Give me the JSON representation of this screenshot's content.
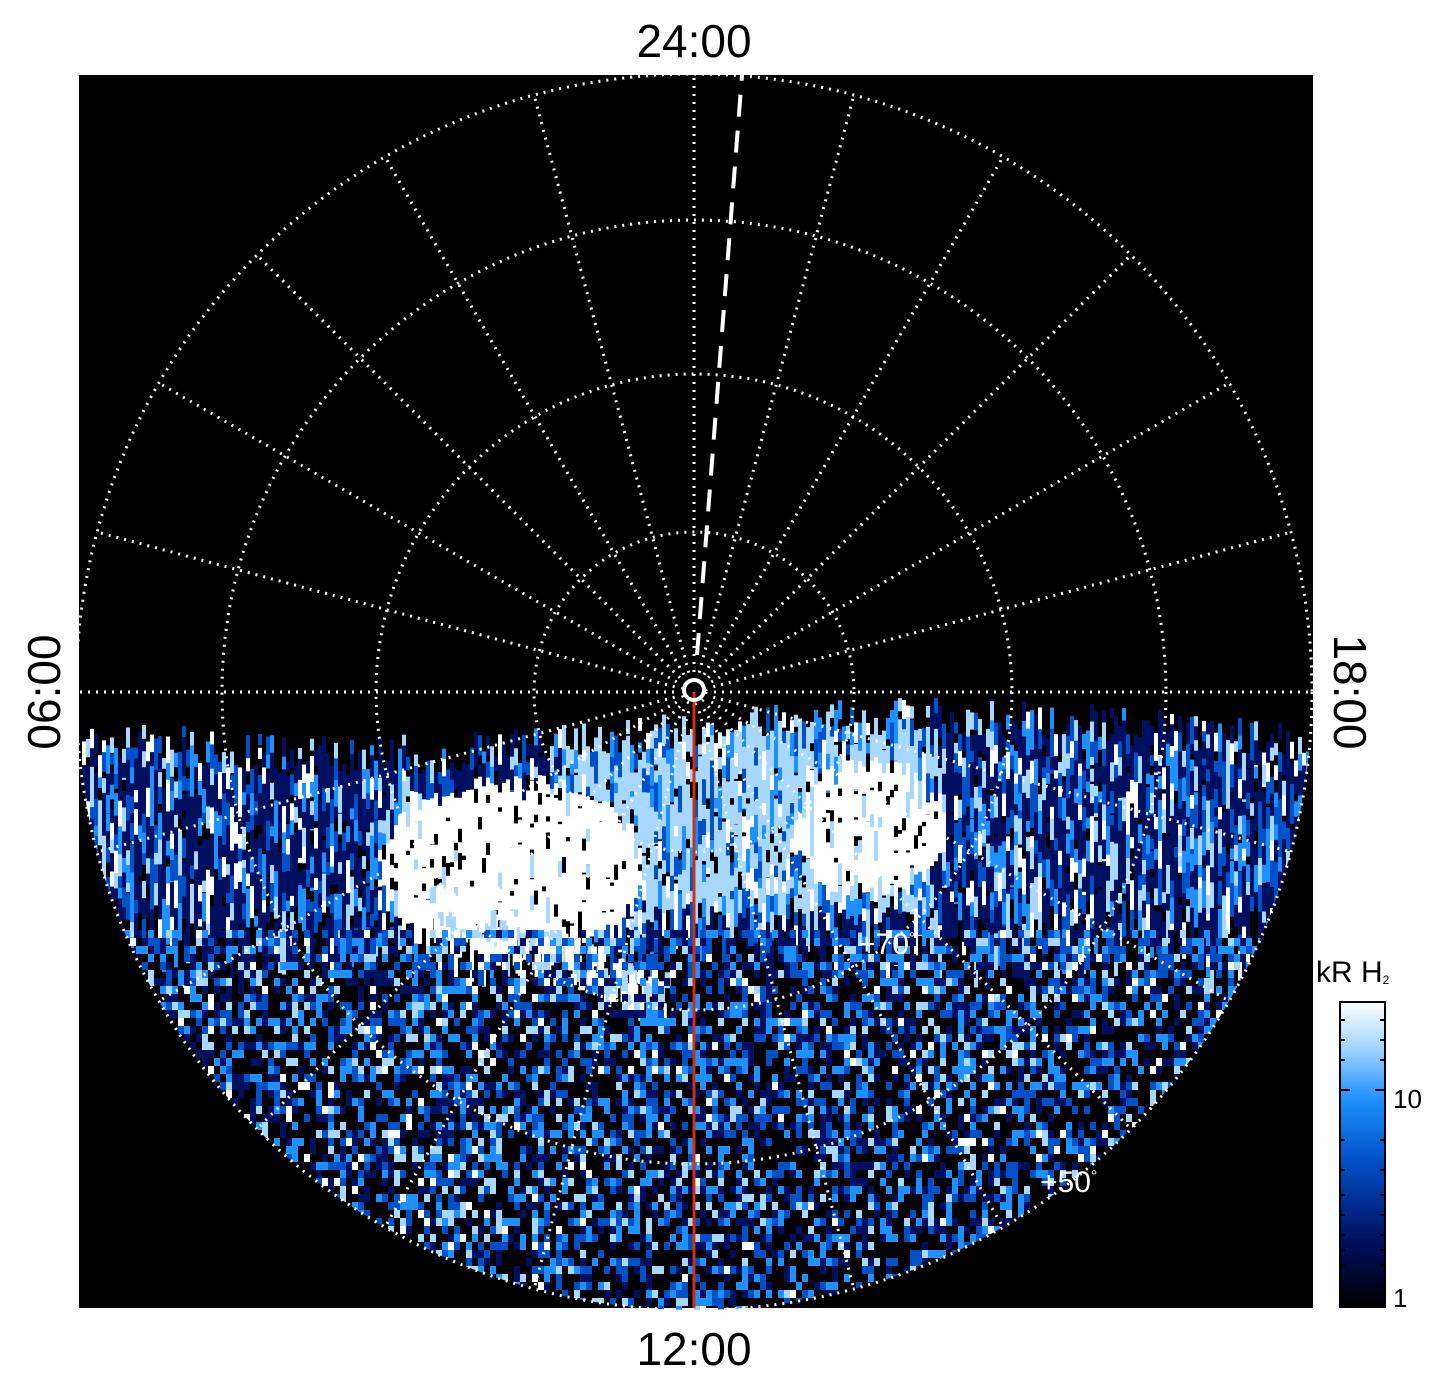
{
  "figure": {
    "local_time_labels": {
      "top": "24:00",
      "bottom": "12:00",
      "left": "06:00",
      "right": "18:00"
    },
    "latitude_labels": [
      {
        "text": "+70",
        "unit": "°"
      },
      {
        "text": "+50",
        "unit": "°"
      }
    ],
    "colorbar": {
      "title_main": "kR H",
      "title_sub": "2",
      "scale": "log",
      "range": [
        1,
        30
      ],
      "ticks": [
        "10",
        "1"
      ],
      "colors": [
        "#000000",
        "#001060",
        "#0050c8",
        "#1e90ff",
        "#a8d8ff",
        "#ffffff"
      ]
    },
    "colors": {
      "background": "#000000",
      "grid": "#ffffff",
      "meridian_line": "#d03010",
      "aurora_bright": "#ffffff",
      "aurora_mid": "#1e90ff",
      "aurora_dark": "#00206e"
    }
  }
}
